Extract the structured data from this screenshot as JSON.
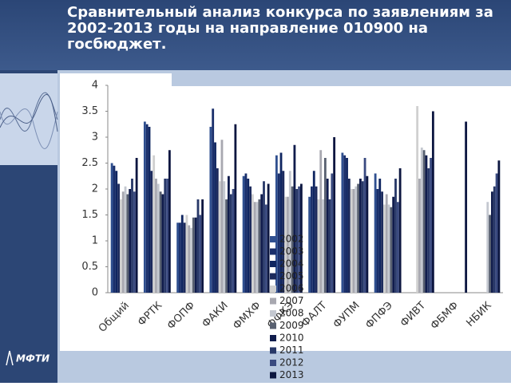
{
  "logo": "МФТИ",
  "chart_data": {
    "type": "bar",
    "title": "Сравнительный анализ конкурса по заявлениям за 2002-2013 годы на направление 010900 на госбюджет.",
    "categories": [
      "Общий",
      "ФРТК",
      "ФОПФ",
      "ФАКИ",
      "ФМХФ",
      "ФФКЭ",
      "ФАЛТ",
      "ФУПМ",
      "ФПФЭ",
      "ФИВТ",
      "ФБМФ",
      "НБИК"
    ],
    "ylim": [
      0,
      4
    ],
    "yticks": [
      0,
      0.5,
      1,
      1.5,
      2,
      2.5,
      3,
      3.5,
      4
    ],
    "grid": false,
    "series": [
      {
        "name": "2002",
        "color": "#2f4f8f",
        "values": [
          2.5,
          3.3,
          1.35,
          3.2,
          2.25,
          2.65,
          1.85,
          2.7,
          2.3,
          null,
          null,
          null
        ]
      },
      {
        "name": "2003",
        "color": "#1a2f6b",
        "values": [
          2.45,
          3.25,
          1.35,
          3.55,
          2.3,
          2.3,
          2.05,
          2.65,
          2.0,
          null,
          null,
          null
        ]
      },
      {
        "name": "2004",
        "color": "#0f2560",
        "values": [
          2.35,
          3.2,
          1.5,
          2.9,
          2.2,
          2.7,
          2.35,
          2.6,
          2.2,
          null,
          null,
          null
        ]
      },
      {
        "name": "2005",
        "color": "#1c2a5c",
        "values": [
          2.1,
          2.35,
          1.35,
          2.4,
          2.05,
          2.35,
          2.05,
          2.2,
          1.95,
          null,
          null,
          null
        ]
      },
      {
        "name": "2006",
        "color": "#d0d0d0",
        "values": [
          1.8,
          2.65,
          1.5,
          2.15,
          1.9,
          1.85,
          1.8,
          2.0,
          1.7,
          3.6,
          null,
          null
        ]
      },
      {
        "name": "2007",
        "color": "#a8a8b0",
        "values": [
          1.95,
          2.2,
          1.3,
          2.95,
          1.75,
          1.85,
          2.75,
          2.0,
          1.9,
          2.2,
          null,
          null
        ]
      },
      {
        "name": "2008",
        "color": "#c4c8d0",
        "values": [
          2.05,
          2.1,
          1.25,
          2.15,
          1.75,
          2.35,
          1.8,
          2.05,
          1.7,
          2.8,
          null,
          1.75
        ]
      },
      {
        "name": "2009",
        "color": "#586070",
        "values": [
          1.9,
          1.95,
          1.45,
          1.8,
          1.8,
          2.05,
          2.6,
          2.1,
          1.65,
          2.75,
          null,
          1.5
        ]
      },
      {
        "name": "2010",
        "color": "#101c4c",
        "values": [
          2.0,
          1.9,
          1.45,
          2.25,
          1.9,
          2.85,
          2.2,
          2.2,
          1.85,
          2.65,
          null,
          1.95
        ]
      },
      {
        "name": "2011",
        "color": "#283868",
        "values": [
          2.2,
          2.2,
          1.8,
          1.9,
          2.15,
          2.0,
          1.8,
          2.15,
          2.2,
          2.4,
          null,
          2.05
        ]
      },
      {
        "name": "2012",
        "color": "#3a4a80",
        "values": [
          1.95,
          2.2,
          1.5,
          2.0,
          1.7,
          2.05,
          2.3,
          2.6,
          1.75,
          2.6,
          null,
          2.3
        ]
      },
      {
        "name": "2013",
        "color": "#0c1640",
        "values": [
          2.6,
          2.75,
          1.8,
          3.25,
          2.1,
          2.1,
          3.0,
          2.25,
          2.4,
          3.5,
          3.3,
          2.55
        ]
      }
    ]
  }
}
